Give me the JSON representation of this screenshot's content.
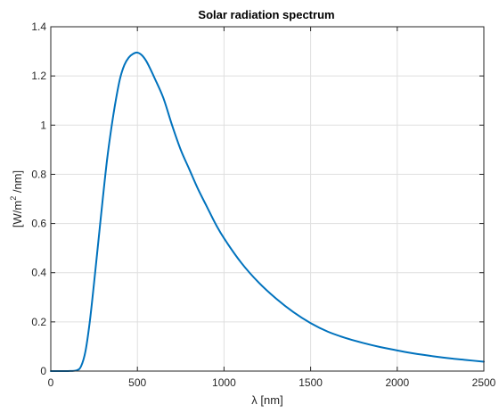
{
  "chart_data": {
    "type": "line",
    "title": "Solar radiation spectrum",
    "xlabel": "λ [nm]",
    "ylabel": {
      "prefix": "[W/m",
      "superscript": "2",
      "suffix": " /nm]"
    },
    "xlim": [
      0,
      2500
    ],
    "ylim": [
      0,
      1.4
    ],
    "xticks": [
      0,
      500,
      1000,
      1500,
      2000,
      2500
    ],
    "xtick_labels": [
      "0",
      "500",
      "1000",
      "1500",
      "2000",
      "2500"
    ],
    "yticks": [
      0,
      0.2,
      0.4,
      0.6,
      0.8,
      1.0,
      1.2,
      1.4
    ],
    "ytick_labels": [
      "0",
      "0.2",
      "0.4",
      "0.6",
      "0.8",
      "1",
      "1.2",
      "1.4"
    ],
    "grid": true,
    "line_color": "#0072bd",
    "series": [
      {
        "x": [
          0,
          50,
          100,
          150,
          175,
          200,
          225,
          250,
          275,
          300,
          325,
          350,
          375,
          400,
          425,
          450,
          475,
          500,
          525,
          550,
          575,
          600,
          650,
          700,
          750,
          800,
          850,
          900,
          950,
          1000,
          1100,
          1200,
          1300,
          1400,
          1500,
          1600,
          1700,
          1800,
          1900,
          2000,
          2100,
          2200,
          2300,
          2400,
          2500
        ],
        "y": [
          0,
          0,
          0,
          0.003,
          0.02,
          0.08,
          0.2,
          0.36,
          0.53,
          0.7,
          0.86,
          0.99,
          1.1,
          1.19,
          1.245,
          1.275,
          1.29,
          1.295,
          1.285,
          1.262,
          1.228,
          1.19,
          1.11,
          1.0,
          0.9,
          0.82,
          0.74,
          0.67,
          0.6,
          0.54,
          0.44,
          0.36,
          0.295,
          0.24,
          0.195,
          0.16,
          0.135,
          0.115,
          0.098,
          0.084,
          0.071,
          0.061,
          0.052,
          0.045,
          0.038
        ]
      }
    ]
  }
}
